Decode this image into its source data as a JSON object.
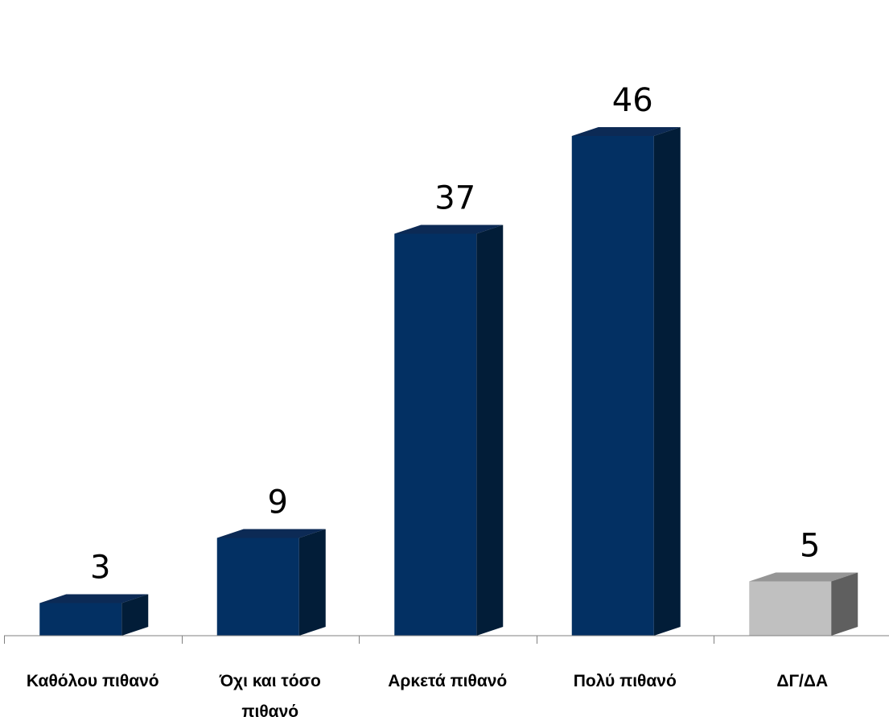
{
  "chart_data": {
    "type": "bar",
    "categories": [
      "Καθόλου πιθανό",
      "Όχι και τόσο πιθανό",
      "Αρκετά πιθανό",
      "Πολύ πιθανό",
      "ΔΓ/ΔΑ"
    ],
    "values": [
      3,
      9,
      37,
      46,
      5
    ],
    "title": "",
    "xlabel": "",
    "ylabel": "",
    "data_labels": [
      "3",
      "9",
      "37",
      "46",
      "5"
    ],
    "grid": false,
    "legend": "none",
    "colors": {
      "main_front": "#033063",
      "main_top": "#0c2a55",
      "main_side": "#021d38",
      "other_front": "#c0c0c0",
      "other_top": "#969696",
      "other_side": "#5f5f5f",
      "axis": "#808080"
    },
    "highlight_category": "ΔΓ/ΔΑ"
  }
}
